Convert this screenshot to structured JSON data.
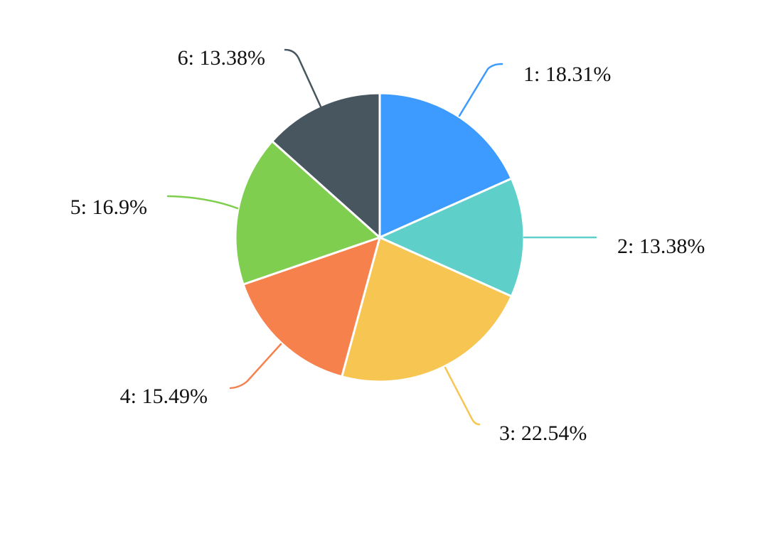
{
  "chart_data": {
    "type": "pie",
    "title": "",
    "slices": [
      {
        "label": "1",
        "value": 18.31,
        "display": "1: 18.31%",
        "color": "#3d9bff"
      },
      {
        "label": "2",
        "value": 13.38,
        "display": "2: 13.38%",
        "color": "#5ecfc9"
      },
      {
        "label": "3",
        "value": 22.54,
        "display": "3: 22.54%",
        "color": "#f7c552"
      },
      {
        "label": "4",
        "value": 15.49,
        "display": "4: 15.49%",
        "color": "#f7814d"
      },
      {
        "label": "5",
        "value": 16.9,
        "display": "5: 16.9%",
        "color": "#7fce4f"
      },
      {
        "label": "6",
        "value": 13.38,
        "display": "6: 13.38%",
        "color": "#47565f"
      }
    ],
    "start": "12 o'clock",
    "direction": "clockwise",
    "legend": "none"
  }
}
